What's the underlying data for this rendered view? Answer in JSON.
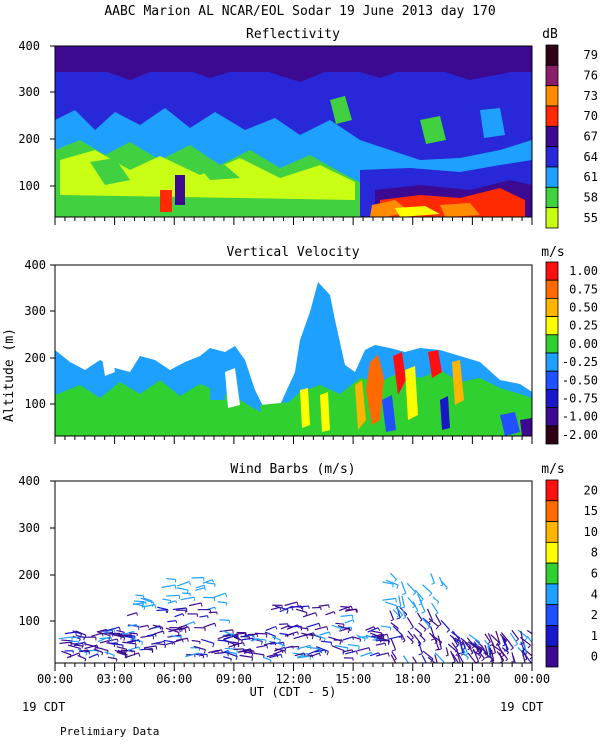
{
  "figure": {
    "title": "AABC Marion AL NCAR/EOL Sodar  19 June 2013 day 170",
    "x_axis_label": "UT  (CDT - 5)",
    "x_left_date": "19 CDT",
    "x_right_date": "19 CDT",
    "footer_note": "Prelimiary Data"
  },
  "chart_data": [
    {
      "type": "heatmap",
      "title": "Reflectivity",
      "ylabel": "",
      "xlim": [
        0,
        24
      ],
      "ylim": [
        30,
        400
      ],
      "x_ticks": [
        "00:00",
        "03:00",
        "06:00",
        "09:00",
        "12:00",
        "15:00",
        "18:00",
        "21:00",
        "00:00"
      ],
      "y_ticks": [
        100,
        200,
        300,
        400
      ],
      "colorbar_unit": "dB",
      "colorbar_labels": [
        "79",
        "76",
        "73",
        "70",
        "67",
        "64",
        "61",
        "58",
        "55"
      ],
      "colorbar_colors": [
        "#300018",
        "#8a1e68",
        "#ff8c00",
        "#ff2a00",
        "#3c0a90",
        "#2828d8",
        "#1ea0ff",
        "#40d040",
        "#c8ff14"
      ]
    },
    {
      "type": "heatmap",
      "title": "Vertical Velocity",
      "ylabel": "Altitude (m)",
      "xlim": [
        0,
        24
      ],
      "ylim": [
        30,
        400
      ],
      "x_ticks": [
        "00:00",
        "03:00",
        "06:00",
        "09:00",
        "12:00",
        "15:00",
        "18:00",
        "21:00",
        "00:00"
      ],
      "y_ticks": [
        100,
        200,
        300,
        400
      ],
      "colorbar_unit": "m/s",
      "colorbar_labels": [
        "1.00",
        "0.75",
        "0.50",
        "0.25",
        "0.00",
        "-0.25",
        "-0.50",
        "-0.75",
        "-1.00",
        "-2.00"
      ],
      "colorbar_colors": [
        "#ff1010",
        "#ff6a00",
        "#ffb400",
        "#ffff00",
        "#30d030",
        "#1ea0ff",
        "#2050ff",
        "#1818c8",
        "#3c0a90",
        "#300018"
      ]
    },
    {
      "type": "scatter",
      "title": "Wind Barbs (m/s)",
      "ylabel": "",
      "xlim": [
        0,
        24
      ],
      "ylim": [
        30,
        400
      ],
      "x_ticks": [
        "00:00",
        "03:00",
        "06:00",
        "09:00",
        "12:00",
        "15:00",
        "18:00",
        "21:00",
        "00:00"
      ],
      "y_ticks": [
        100,
        200,
        300,
        400
      ],
      "colorbar_unit": "m/s",
      "colorbar_labels": [
        "20",
        "15",
        "10",
        "8",
        "6",
        "4",
        "2",
        "1",
        "0"
      ],
      "colorbar_colors": [
        "#ff1010",
        "#ff6a00",
        "#ffb400",
        "#ffff00",
        "#30d030",
        "#1ea0ff",
        "#2050ff",
        "#1818c8",
        "#3c0a90"
      ]
    }
  ]
}
